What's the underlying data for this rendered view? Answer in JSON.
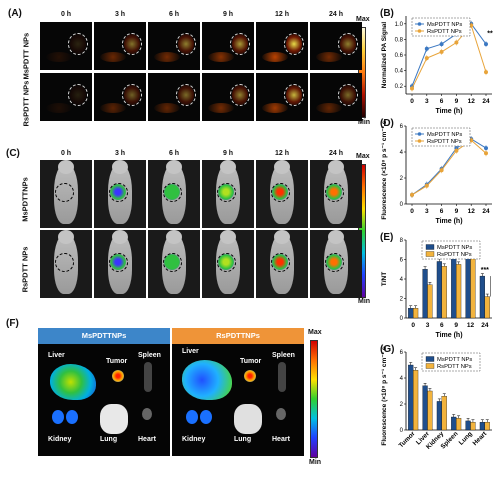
{
  "panels": {
    "A": "(A)",
    "B": "(B)",
    "C": "(C)",
    "D": "(D)",
    "E": "(E)",
    "F": "(F)",
    "G": "(G)"
  },
  "timepoints": [
    "0 h",
    "3 h",
    "6 h",
    "9 h",
    "12 h",
    "24 h"
  ],
  "panelA": {
    "row1": "MsPDTT NPs",
    "row2": "RsPDTT NPs",
    "max": "Max",
    "min": "Min"
  },
  "panelC": {
    "row1": "MsPDTTNPs",
    "row2": "RsPDTT NPs",
    "max": "Max",
    "min": "Min"
  },
  "panelF": {
    "left_title": "MsPDTTNPs",
    "right_title": "RsPDTTNPs",
    "max": "Max",
    "min": "Min",
    "organs": {
      "liver": "Liver",
      "tumor": "Tumor",
      "spleen": "Spleen",
      "kidney": "Kidney",
      "lung": "Lung",
      "heart": "Heart"
    }
  },
  "chart_data": [
    {
      "panel": "B",
      "type": "line",
      "xlabel": "Time (h)",
      "ylabel": "Normalized PA Signal",
      "x": [
        0,
        3,
        6,
        9,
        12,
        24
      ],
      "xlim": [
        0,
        24
      ],
      "ylim": [
        0.1,
        1.1
      ],
      "yticks": [
        "0.2",
        "0.4",
        "0.6",
        "0.8",
        "1.0"
      ],
      "series": [
        {
          "name": "MsPDTT NPs",
          "values": [
            0.2,
            0.68,
            0.74,
            0.87,
            1.0,
            0.74
          ],
          "color": "#3b78c2"
        },
        {
          "name": "RsPDTT NPs",
          "values": [
            0.17,
            0.56,
            0.64,
            0.76,
            0.98,
            0.38
          ],
          "color": "#e8a43a"
        }
      ],
      "annotation": "**"
    },
    {
      "panel": "D",
      "type": "line",
      "xlabel": "Time (h)",
      "ylabel": "Fluorescence (×10⁸ p s⁻¹ cm⁻² sr⁻¹)",
      "x": [
        0,
        3,
        6,
        9,
        12,
        24
      ],
      "ylim": [
        0,
        6
      ],
      "yticks": [
        "0",
        "2",
        "4",
        "6"
      ],
      "series": [
        {
          "name": "MsPDTT NPs",
          "values": [
            0.7,
            1.5,
            2.7,
            4.3,
            5.0,
            4.3
          ],
          "color": "#3b78c2"
        },
        {
          "name": "RsPDTT NPs",
          "values": [
            0.7,
            1.4,
            2.6,
            4.1,
            4.9,
            3.9
          ],
          "color": "#e8a43a"
        }
      ]
    },
    {
      "panel": "E",
      "type": "bar",
      "xlabel": "Time (h)",
      "ylabel": "T/NT",
      "categories": [
        "0",
        "3",
        "6",
        "9",
        "12",
        "24"
      ],
      "ylim": [
        0,
        8
      ],
      "yticks": [
        "0",
        "2",
        "4",
        "6",
        "8"
      ],
      "series": [
        {
          "name": "MsPDTT NPs",
          "values": [
            1.0,
            5.0,
            5.8,
            6.3,
            6.7,
            4.3
          ],
          "color": "#1f4e8c"
        },
        {
          "name": "RsPDTT NPs",
          "values": [
            1.0,
            3.4,
            5.3,
            5.5,
            6.1,
            2.2
          ],
          "color": "#f2b33d"
        }
      ],
      "annotation": "***"
    },
    {
      "panel": "G",
      "type": "bar",
      "ylabel": "Fluorescence (×10⁸ p s⁻¹ cm⁻² sr⁻¹)",
      "categories": [
        "Tumor",
        "Liver",
        "Kidney",
        "Spleen",
        "Lung",
        "Heart"
      ],
      "ylim": [
        0,
        6
      ],
      "yticks": [
        "0",
        "2",
        "4",
        "6"
      ],
      "series": [
        {
          "name": "MsPDTT NPs",
          "values": [
            5.0,
            3.4,
            2.2,
            1.0,
            0.7,
            0.6
          ],
          "color": "#1f4e8c"
        },
        {
          "name": "RsPDTT NPs",
          "values": [
            4.6,
            3.0,
            2.6,
            0.9,
            0.6,
            0.6
          ],
          "color": "#f2b33d"
        }
      ]
    }
  ]
}
